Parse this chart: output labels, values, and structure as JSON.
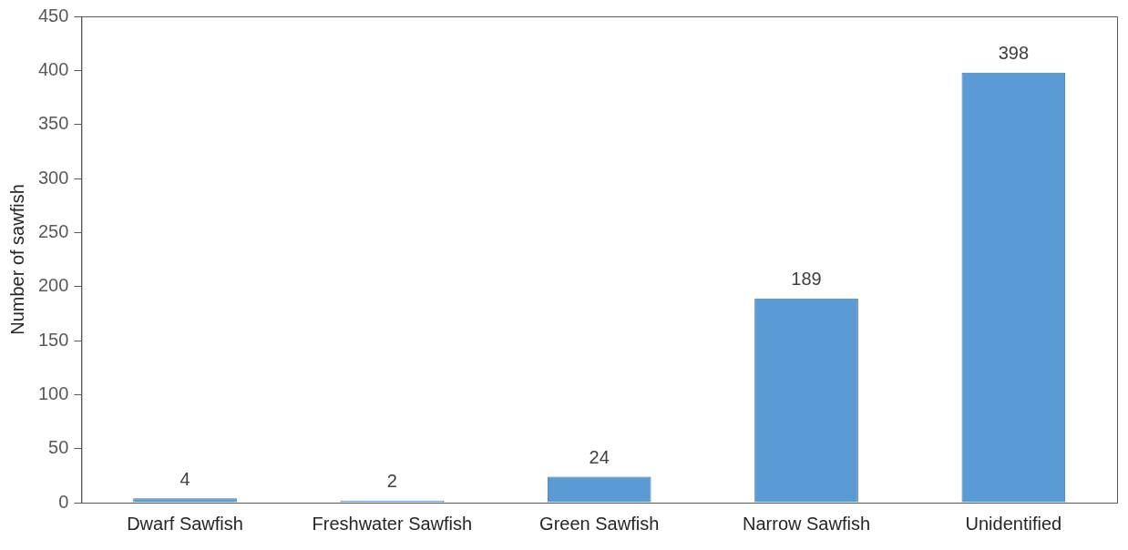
{
  "chart_data": {
    "type": "bar",
    "ylabel": "Number of sawfish",
    "categories": [
      "Dwarf Sawfish",
      "Freshwater Sawfish",
      "Green Sawfish",
      "Narrow Sawfish",
      "Unidentified"
    ],
    "values": [
      4,
      2,
      24,
      189,
      398
    ],
    "color": "#5b9bd5",
    "ylim": [
      0,
      450
    ],
    "yticks": [
      0,
      50,
      100,
      150,
      200,
      250,
      300,
      350,
      400,
      450
    ],
    "grid": false,
    "legend": false,
    "data_labels": true
  }
}
